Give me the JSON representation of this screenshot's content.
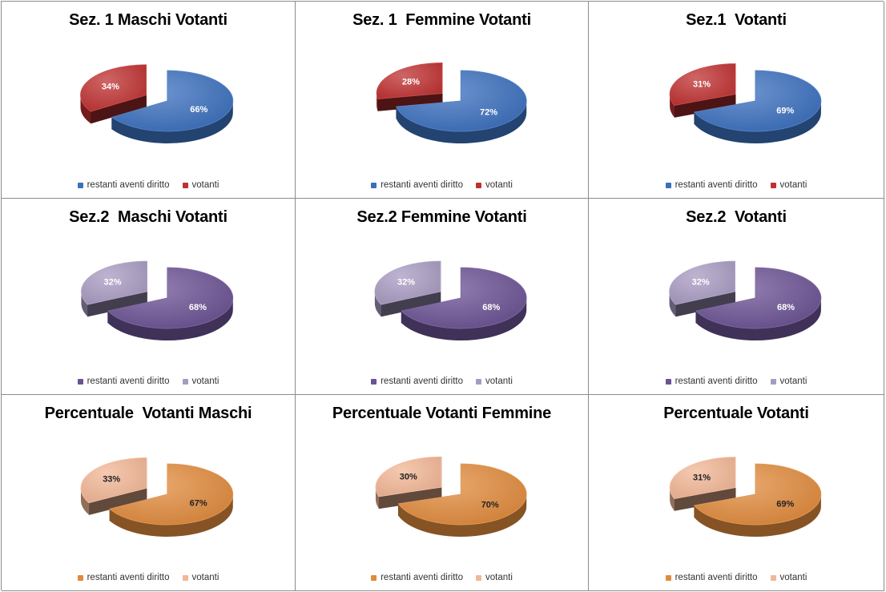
{
  "chart_data": [
    {
      "type": "pie",
      "title": "Sez. 1 Maschi Votanti",
      "categories": [
        "restanti aventi diritto",
        "votanti"
      ],
      "values": [
        66,
        34
      ],
      "labels": [
        "66%",
        "34%"
      ],
      "colors": [
        "#3b6fbd",
        "#bf3131"
      ],
      "legend": "bottom"
    },
    {
      "type": "pie",
      "title": "Sez. 1  Femmine Votanti",
      "categories": [
        "restanti aventi diritto",
        "votanti"
      ],
      "values": [
        72,
        28
      ],
      "labels": [
        "72%",
        "28%"
      ],
      "colors": [
        "#3b6fbd",
        "#bf3131"
      ],
      "legend": "bottom"
    },
    {
      "type": "pie",
      "title": "Sez.1  Votanti",
      "categories": [
        "restanti aventi diritto",
        "votanti"
      ],
      "values": [
        69,
        31
      ],
      "labels": [
        "69%",
        "31%"
      ],
      "colors": [
        "#3b6fbd",
        "#bf3131"
      ],
      "legend": "bottom"
    },
    {
      "type": "pie",
      "title": "Sez.2  Maschi Votanti",
      "categories": [
        "restanti aventi diritto",
        "votanti"
      ],
      "values": [
        68,
        32
      ],
      "labels": [
        "68%",
        "32%"
      ],
      "colors": [
        "#6b5293",
        "#a89bc2"
      ],
      "legend": "bottom"
    },
    {
      "type": "pie",
      "title": "Sez.2 Femmine Votanti",
      "categories": [
        "restanti aventi diritto",
        "votanti"
      ],
      "values": [
        68,
        32
      ],
      "labels": [
        "68%",
        "32%"
      ],
      "colors": [
        "#6b5293",
        "#a89bc2"
      ],
      "legend": "bottom"
    },
    {
      "type": "pie",
      "title": "Sez.2  Votanti",
      "categories": [
        "restanti aventi diritto",
        "votanti"
      ],
      "values": [
        68,
        32
      ],
      "labels": [
        "68%",
        "32%"
      ],
      "colors": [
        "#6b5293",
        "#a89bc2"
      ],
      "legend": "bottom"
    },
    {
      "type": "pie",
      "title": "Percentuale  Votanti Maschi",
      "categories": [
        "restanti aventi diritto",
        "votanti"
      ],
      "values": [
        67,
        33
      ],
      "labels": [
        "67%",
        "33%"
      ],
      "colors": [
        "#e08a3c",
        "#f2b796"
      ],
      "legend": "bottom"
    },
    {
      "type": "pie",
      "title": "Percentuale Votanti Femmine",
      "categories": [
        "restanti aventi diritto",
        "votanti"
      ],
      "values": [
        70,
        30
      ],
      "labels": [
        "70%",
        "30%"
      ],
      "colors": [
        "#e08a3c",
        "#f2b796"
      ],
      "legend": "bottom"
    },
    {
      "type": "pie",
      "title": "Percentuale Votanti",
      "categories": [
        "restanti aventi diritto",
        "votanti"
      ],
      "values": [
        69,
        31
      ],
      "labels": [
        "69%",
        "31%"
      ],
      "colors": [
        "#e08a3c",
        "#f2b796"
      ],
      "legend": "bottom"
    }
  ]
}
